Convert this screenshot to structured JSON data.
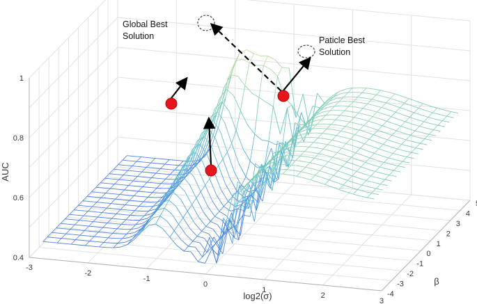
{
  "chart_data": {
    "type": "surface",
    "style": "3d-mesh",
    "xlabel": "log2(σ)",
    "ylabel": "β",
    "zlabel": "AUC",
    "xlim": [
      -3,
      3
    ],
    "ylim": [
      -4,
      5
    ],
    "zlim": [
      0.4,
      1.0
    ],
    "xticks": [
      "-3",
      "-2",
      "-1",
      "0",
      "1",
      "2",
      "3"
    ],
    "yticks": [
      "-4",
      "-3",
      "-2",
      "-1",
      "0",
      "1",
      "2",
      "3",
      "4",
      "5"
    ],
    "zticks": [
      "0.4",
      "0.6",
      "0.8",
      "1"
    ],
    "grid": true,
    "colormap": [
      "#4a7fe0",
      "#58b7d8",
      "#7fd0b0",
      "#c8dca0",
      "#ece38a"
    ],
    "annotations": [
      {
        "label": "Global Best\nSolution",
        "x": -0.3,
        "y": 4.7,
        "z": 1.0
      },
      {
        "label": "Paticle Best\nSolution",
        "x": 0.3,
        "y": 4.8,
        "z": 0.83
      }
    ],
    "particles": [
      {
        "x": -0.4,
        "y": 2.6,
        "z": 0.93,
        "to": {
          "x": -0.35,
          "y": 3.4,
          "z": 0.96
        }
      },
      {
        "x": 0.3,
        "y": 3.6,
        "z": 0.75,
        "to": {
          "x": 0.2,
          "y": 3.5,
          "z": 0.86
        }
      },
      {
        "x": 0.6,
        "y": 2.5,
        "z": 0.96,
        "to": {
          "x": 0.3,
          "y": 4.6,
          "z": 0.84
        }
      }
    ]
  }
}
